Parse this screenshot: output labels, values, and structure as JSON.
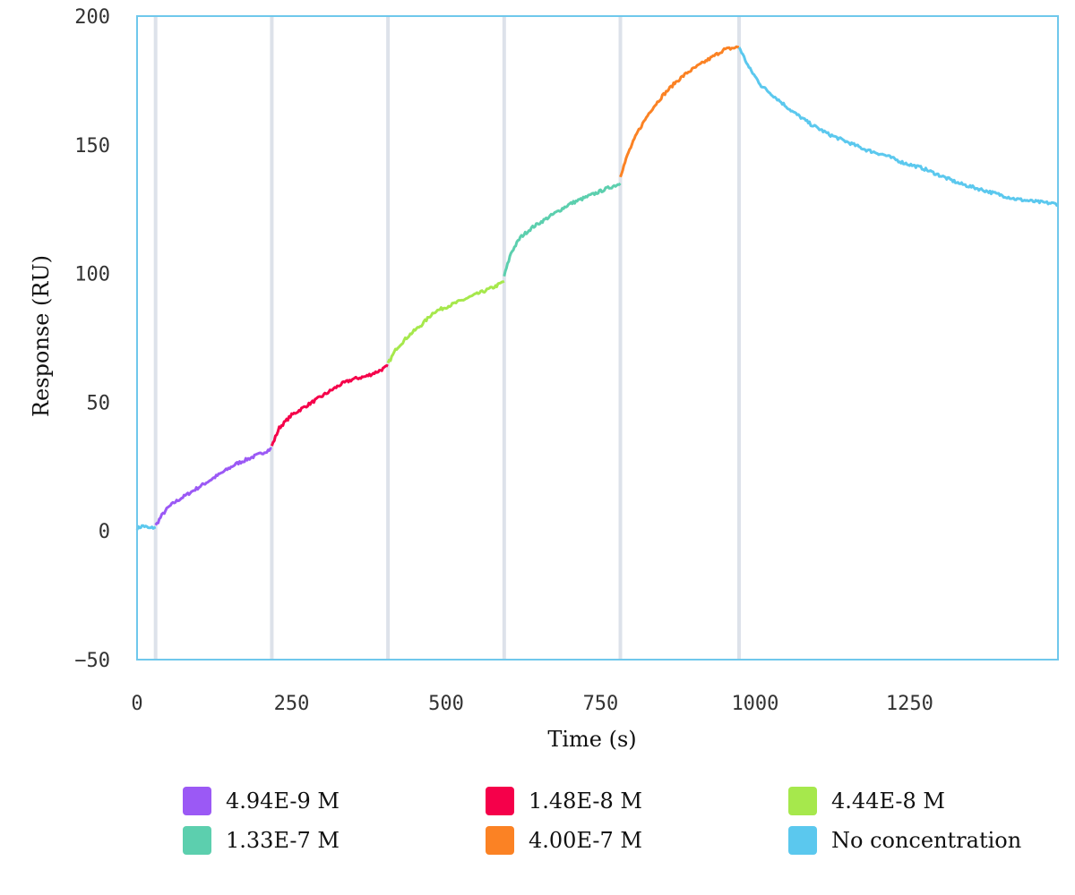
{
  "chart_data": {
    "type": "line",
    "xlabel": "Time (s)",
    "ylabel": "Response (RU)",
    "xlim": [
      0,
      1490
    ],
    "ylim": [
      -50,
      200
    ],
    "xticks": [
      "0",
      "250",
      "500",
      "750",
      "1000",
      "1250"
    ],
    "xtick_values": [
      0,
      250,
      500,
      750,
      1000,
      1250
    ],
    "yticks": [
      "200",
      "150",
      "100",
      "50",
      "0",
      "−50"
    ],
    "ytick_values": [
      200,
      150,
      100,
      50,
      0,
      -50
    ],
    "grid": "vertical lines at injection boundaries",
    "injection_boundaries": [
      30,
      218,
      406,
      594,
      782,
      974
    ],
    "legend_position": "bottom",
    "series": [
      {
        "name": "No concentration",
        "color": "#5bc8ee",
        "x": [
          0,
          10,
          20,
          30
        ],
        "y": [
          1,
          2,
          1,
          1.5
        ]
      },
      {
        "name": "4.94E-9 M",
        "color": "#9b59f5",
        "x": [
          30,
          40,
          50,
          60,
          80,
          100,
          120,
          140,
          160,
          180,
          200,
          218
        ],
        "y": [
          2,
          6,
          9,
          11,
          14,
          17,
          20,
          23,
          26,
          28,
          30,
          32
        ]
      },
      {
        "name": "1.48E-8 M",
        "color": "#f5004a",
        "x": [
          218,
          230,
          250,
          270,
          290,
          310,
          330,
          350,
          370,
          390,
          406
        ],
        "y": [
          33,
          40,
          45,
          48,
          51,
          54,
          57,
          59,
          60,
          62,
          64
        ]
      },
      {
        "name": "4.44E-8 M",
        "color": "#a6e84c",
        "x": [
          406,
          420,
          440,
          460,
          480,
          500,
          520,
          540,
          560,
          580,
          594
        ],
        "y": [
          65,
          71,
          76,
          80,
          85,
          87,
          89,
          91,
          93,
          95,
          97
        ]
      },
      {
        "name": "1.33E-7 M",
        "color": "#5ccfae",
        "x": [
          594,
          605,
          620,
          640,
          660,
          680,
          700,
          720,
          740,
          760,
          782
        ],
        "y": [
          99,
          108,
          114,
          118,
          121,
          124,
          127,
          129,
          131,
          133,
          135
        ]
      },
      {
        "name": "4.00E-7 M",
        "color": "#fb8224",
        "x": [
          782,
          795,
          810,
          830,
          850,
          870,
          890,
          910,
          930,
          950,
          974
        ],
        "y": [
          138,
          147,
          155,
          163,
          169,
          174,
          178,
          181,
          184,
          187,
          188
        ]
      },
      {
        "name": "No concentration",
        "color": "#5bc8ee",
        "x": [
          974,
          990,
          1010,
          1030,
          1060,
          1090,
          1120,
          1150,
          1180,
          1210,
          1240,
          1270,
          1300,
          1330,
          1360,
          1390,
          1420,
          1450,
          1490
        ],
        "y": [
          188,
          180,
          173,
          169,
          163,
          158,
          154,
          151,
          148,
          146,
          143,
          141,
          138,
          135,
          133,
          131,
          129,
          128,
          127
        ]
      }
    ],
    "legend": [
      {
        "name": "4.94E-9 M",
        "color": "#9b59f5"
      },
      {
        "name": "1.48E-8 M",
        "color": "#f5004a"
      },
      {
        "name": "4.44E-8 M",
        "color": "#a6e84c"
      },
      {
        "name": "1.33E-7 M",
        "color": "#5ccfae"
      },
      {
        "name": "4.00E-7 M",
        "color": "#fb8224"
      },
      {
        "name": "No concentration",
        "color": "#5bc8ee"
      }
    ]
  },
  "colors": {
    "frame": "#6fc8ec",
    "boundary_line": "#dde2ea"
  }
}
